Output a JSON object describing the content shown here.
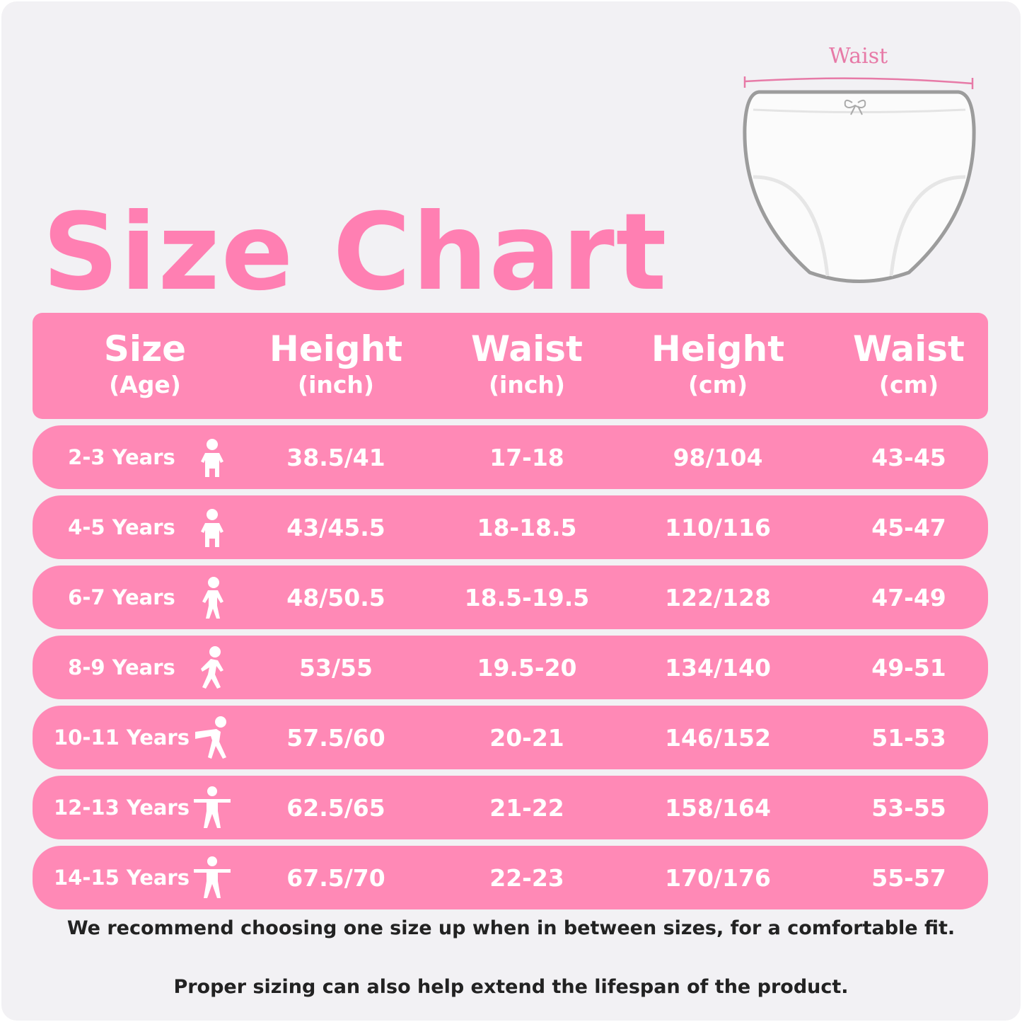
{
  "title": "Size Chart",
  "diagram": {
    "waist_label": "Waist"
  },
  "colors": {
    "pink": "#ff89b6",
    "title_pink": "#ff7fb2",
    "background": "#f2f1f4"
  },
  "headers": [
    {
      "main": "Size",
      "sub": "(Age)"
    },
    {
      "main": "Height",
      "sub": "(inch)"
    },
    {
      "main": "Waist",
      "sub": "(inch)"
    },
    {
      "main": "Height",
      "sub": "(cm)"
    },
    {
      "main": "Waist",
      "sub": "(cm)"
    }
  ],
  "rows": [
    {
      "size": "2-3 Years",
      "icon": "toddler-icon",
      "height_in": "38.5/41",
      "waist_in": "17-18",
      "height_cm": "98/104",
      "waist_cm": "43-45"
    },
    {
      "size": "4-5 Years",
      "icon": "toddler-icon",
      "height_in": "43/45.5",
      "waist_in": "18-18.5",
      "height_cm": "110/116",
      "waist_cm": "45-47"
    },
    {
      "size": "6-7 Years",
      "icon": "child-icon",
      "height_in": "48/50.5",
      "waist_in": "18.5-19.5",
      "height_cm": "122/128",
      "waist_cm": "47-49"
    },
    {
      "size": "8-9 Years",
      "icon": "child-walking-icon",
      "height_in": "53/55",
      "waist_in": "19.5-20",
      "height_cm": "134/140",
      "waist_cm": "49-51"
    },
    {
      "size": "10-11 Years",
      "icon": "child-dancing-icon",
      "height_in": "57.5/60",
      "waist_in": "20-21",
      "height_cm": "146/152",
      "waist_cm": "51-53"
    },
    {
      "size": "12-13 Years",
      "icon": "teen-icon",
      "height_in": "62.5/65",
      "waist_in": "21-22",
      "height_cm": "158/164",
      "waist_cm": "53-55"
    },
    {
      "size": "14-15 Years",
      "icon": "teen-icon",
      "height_in": "67.5/70",
      "waist_in": "22-23",
      "height_cm": "170/176",
      "waist_cm": "55-57"
    }
  ],
  "notes": [
    "We  recommend choosing  one  size  up  when  in  between  sizes, for  a  comfortable  fit.",
    "Proper  sizing can  also  help  extend  the lifespan  of  the  product."
  ]
}
